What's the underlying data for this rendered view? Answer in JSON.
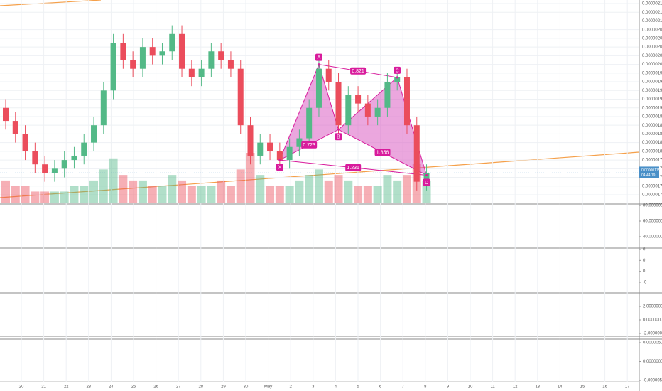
{
  "chart_data": {
    "type": "candlestick",
    "open": [
      1.9e-06,
      1.87e-06,
      1.84e-06,
      1.8e-06,
      1.77e-06,
      1.75e-06,
      1.76e-06,
      1.78e-06,
      1.79e-06,
      1.82e-06,
      1.86e-06,
      1.94e-06,
      2.05e-06,
      2.01e-06,
      1.99e-06,
      2.04e-06,
      2.02e-06,
      2.03e-06,
      2.07e-06,
      1.99e-06,
      1.97e-06,
      1.99e-06,
      2.03e-06,
      2.01e-06,
      1.99e-06,
      1.86e-06,
      1.79e-06,
      1.82e-06,
      1.8e-06,
      1.78e-06,
      1.81e-06,
      1.83e-06,
      1.9e-06,
      1.99e-06,
      1.96e-06,
      1.86e-06,
      1.93e-06,
      1.91e-06,
      1.88e-06,
      1.9e-06,
      1.96e-06,
      1.97e-06,
      1.86e-06,
      1.73e-06
    ],
    "high": [
      1.92e-06,
      1.89e-06,
      1.86e-06,
      1.82e-06,
      1.79e-06,
      1.78e-06,
      1.8e-06,
      1.81e-06,
      1.84e-06,
      1.88e-06,
      1.96e-06,
      2.07e-06,
      2.07e-06,
      2.03e-06,
      2.06e-06,
      2.06e-06,
      2.05e-06,
      2.09e-06,
      2.09e-06,
      2.01e-06,
      2.01e-06,
      2.05e-06,
      2.05e-06,
      2.03e-06,
      2.01e-06,
      1.88e-06,
      1.84e-06,
      1.84e-06,
      1.82e-06,
      1.83e-06,
      1.85e-06,
      1.92e-06,
      2.01e-06,
      2.01e-06,
      1.98e-06,
      1.95e-06,
      1.95e-06,
      1.93e-06,
      1.92e-06,
      1.98e-06,
      1.99e-06,
      1.99e-06,
      1.88e-06,
      1.77e-06
    ],
    "low": [
      1.85e-06,
      1.82e-06,
      1.78e-06,
      1.75e-06,
      1.73e-06,
      1.73e-06,
      1.74e-06,
      1.76e-06,
      1.77e-06,
      1.8e-06,
      1.84e-06,
      1.92e-06,
      1.99e-06,
      1.97e-06,
      1.97e-06,
      2e-06,
      2e-06,
      2.01e-06,
      1.97e-06,
      1.95e-06,
      1.95e-06,
      1.97e-06,
      1.99e-06,
      1.97e-06,
      1.84e-06,
      1.77e-06,
      1.77e-06,
      1.78e-06,
      1.76e-06,
      1.76e-06,
      1.79e-06,
      1.81e-06,
      1.88e-06,
      1.94e-06,
      1.84e-06,
      1.84e-06,
      1.89e-06,
      1.86e-06,
      1.86e-06,
      1.88e-06,
      1.94e-06,
      1.84e-06,
      1.71e-06,
      1.71e-06
    ],
    "close": [
      1.87e-06,
      1.84e-06,
      1.8e-06,
      1.77e-06,
      1.75e-06,
      1.76e-06,
      1.78e-06,
      1.79e-06,
      1.82e-06,
      1.86e-06,
      1.94e-06,
      2.05e-06,
      2.01e-06,
      1.99e-06,
      2.04e-06,
      2.02e-06,
      2.03e-06,
      2.07e-06,
      1.99e-06,
      1.97e-06,
      1.99e-06,
      2.03e-06,
      2.01e-06,
      1.99e-06,
      1.86e-06,
      1.79e-06,
      1.82e-06,
      1.8e-06,
      1.78e-06,
      1.81e-06,
      1.83e-06,
      1.9e-06,
      1.99e-06,
      1.96e-06,
      1.86e-06,
      1.93e-06,
      1.91e-06,
      1.88e-06,
      1.9e-06,
      1.96e-06,
      1.97e-06,
      1.86e-06,
      1.73e-06,
      1.75e-06
    ],
    "volume": [
      4,
      3,
      3,
      2,
      2,
      2,
      2,
      3,
      3,
      4,
      6,
      8,
      5,
      4,
      4,
      3,
      3,
      5,
      4,
      3,
      3,
      3,
      4,
      3,
      6,
      9,
      5,
      3,
      3,
      3,
      4,
      5,
      6,
      4,
      5,
      4,
      3,
      3,
      3,
      5,
      4,
      5,
      7,
      4
    ],
    "up_color": "#53b987",
    "down_color": "#eb4d5c",
    "ylim": [
      1.7e-06,
      2.14e-06
    ],
    "yticks": [
      {
        "value": 1.7e-06,
        "label": "0.00000170"
      },
      {
        "value": 1.72e-06,
        "label": "0.00000172"
      },
      {
        "value": 1.74e-06,
        "label": "0.00000174"
      },
      {
        "value": 1.76e-06,
        "label": "0.00000176"
      },
      {
        "value": 1.78e-06,
        "label": "0.00000178"
      },
      {
        "value": 1.8e-06,
        "label": "0.00000180"
      },
      {
        "value": 1.82e-06,
        "label": "0.00000182"
      },
      {
        "value": 1.84e-06,
        "label": "0.00000184"
      },
      {
        "value": 1.86e-06,
        "label": "0.00000186"
      },
      {
        "value": 1.88e-06,
        "label": "0.00000188"
      },
      {
        "value": 1.9e-06,
        "label": "0.00000190"
      },
      {
        "value": 1.92e-06,
        "label": "0.00000192"
      },
      {
        "value": 1.94e-06,
        "label": "0.00000194"
      },
      {
        "value": 1.96e-06,
        "label": "0.00000196"
      },
      {
        "value": 1.98e-06,
        "label": "0.00000198"
      },
      {
        "value": 2e-06,
        "label": "0.00000200"
      },
      {
        "value": 2.02e-06,
        "label": "0.00000202"
      },
      {
        "value": 2.04e-06,
        "label": "0.00000204"
      },
      {
        "value": 2.06e-06,
        "label": "0.00000206"
      },
      {
        "value": 2.08e-06,
        "label": "0.00000208"
      },
      {
        "value": 2.1e-06,
        "label": "0.00000210"
      },
      {
        "value": 2.12e-06,
        "label": "0.00000212"
      },
      {
        "value": 2.14e-06,
        "label": "0.00000214"
      }
    ],
    "date_labels": [
      "20",
      "21",
      "22",
      "23",
      "24",
      "25",
      "26",
      "27",
      "28",
      "29",
      "30",
      "May",
      "2",
      "3",
      "4",
      "5",
      "6",
      "7",
      "8",
      "9",
      "10",
      "11",
      "12",
      "13",
      "14",
      "15",
      "16",
      "17"
    ],
    "current_price": "0.00000175",
    "countdown": "04:44:19",
    "pattern": {
      "points": [
        {
          "name": "X",
          "index": 28,
          "price": 1.78e-06
        },
        {
          "name": "A",
          "index": 32,
          "price": 2e-06
        },
        {
          "name": "B",
          "index": 34,
          "price": 1.85e-06
        },
        {
          "name": "C",
          "index": 40,
          "price": 1.97e-06
        },
        {
          "name": "D",
          "index": 43,
          "price": 1.745e-06
        }
      ],
      "ratios": [
        "0.723",
        "0.821",
        "1.856",
        "1.231"
      ]
    },
    "panes": [
      {
        "labels": [
          "80.00000000",
          "60.00000000",
          "40.00000000"
        ]
      },
      {
        "labels": [
          "0",
          "0",
          "0",
          "-0"
        ]
      },
      {
        "labels": [
          "2.00000000",
          "0.00000000",
          "-2.00000000"
        ]
      },
      {
        "labels": [
          "0.00000500",
          "0.00000000",
          "-0.00000500"
        ]
      }
    ]
  }
}
